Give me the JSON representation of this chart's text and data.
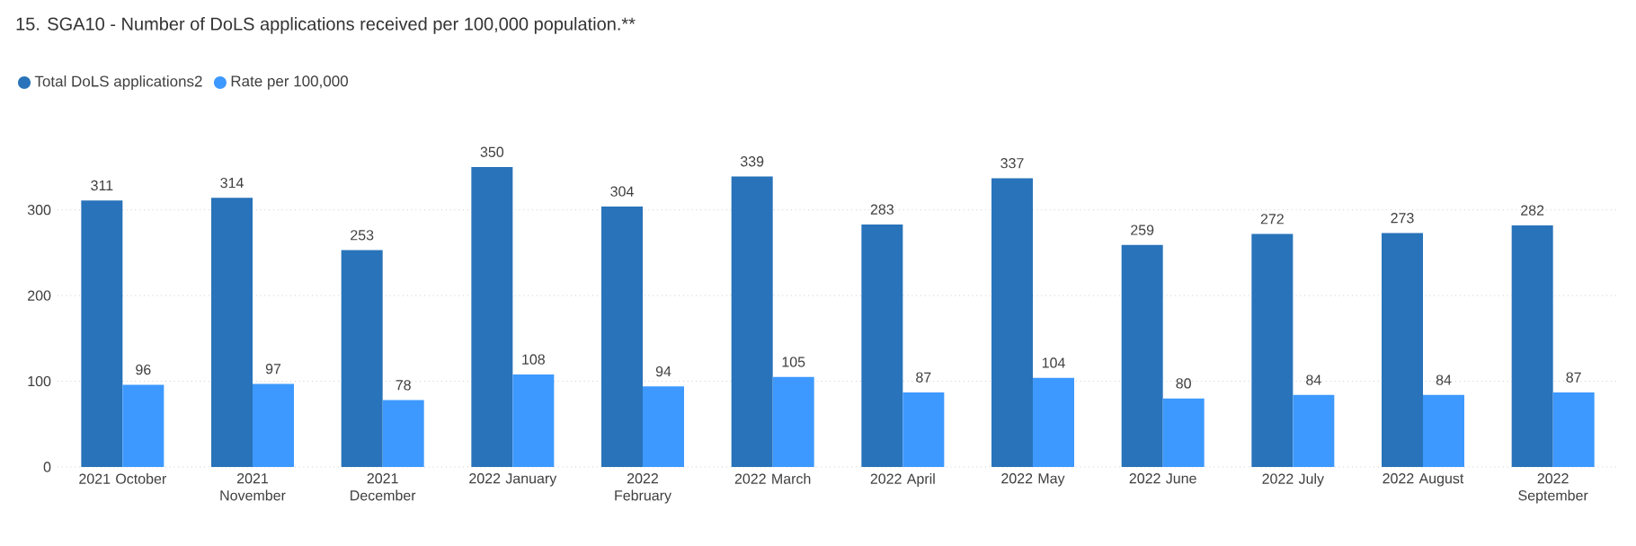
{
  "chart_data": {
    "type": "bar",
    "title": "15. SGA10 - Number of DoLS applications received per 100,000 population.**",
    "categories": [
      "2021 October",
      "2021 November",
      "2021 December",
      "2022 January",
      "2022 February",
      "2022 March",
      "2022 April",
      "2022 May",
      "2022 June",
      "2022 July",
      "2022 August",
      "2022 September"
    ],
    "series": [
      {
        "name": "Total DoLS applications2",
        "color": "#2873ba",
        "values": [
          311,
          314,
          253,
          350,
          304,
          339,
          283,
          337,
          259,
          272,
          273,
          282
        ]
      },
      {
        "name": "Rate per 100,000",
        "color": "#3d99ff",
        "values": [
          96,
          97,
          78,
          108,
          94,
          105,
          87,
          104,
          80,
          84,
          84,
          87
        ]
      }
    ],
    "ylim": [
      0,
      350
    ],
    "yticks": [
      0,
      100,
      200,
      300
    ],
    "grid": "y",
    "legend": "top left",
    "data_labels": true
  }
}
